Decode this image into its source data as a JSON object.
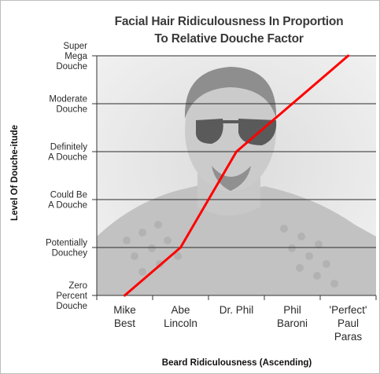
{
  "chart_data": {
    "type": "line",
    "title": [
      "Facial Hair Ridiculousness In Proportion",
      "To Relative Douche Factor"
    ],
    "xlabel": "Beard Ridiculousness (Ascending)",
    "ylabel": "Level Of Douche-itude",
    "categories": [
      [
        "Mike",
        "Best"
      ],
      [
        "Abe",
        "Lincoln"
      ],
      [
        "Dr. Phil"
      ],
      [
        "Phil",
        "Baroni"
      ],
      [
        "'Perfect'",
        "Paul",
        "Paras"
      ]
    ],
    "y_levels": [
      [
        "Zero",
        "Percent",
        "Douche"
      ],
      [
        "Potentially",
        "Douchey"
      ],
      [
        "Could Be",
        "A Douche"
      ],
      [
        "Definitely",
        "A Douche"
      ],
      [
        "Moderate",
        "Douche"
      ],
      [
        "Super",
        "Mega",
        "Douche"
      ]
    ],
    "ylim": [
      0,
      5
    ],
    "grid": true,
    "series": [
      {
        "values": [
          0,
          1,
          3,
          4,
          5
        ],
        "color": "#ff0000"
      }
    ],
    "background_image": "photo of a man with sunglasses and goatee wearing a sequined vest"
  }
}
